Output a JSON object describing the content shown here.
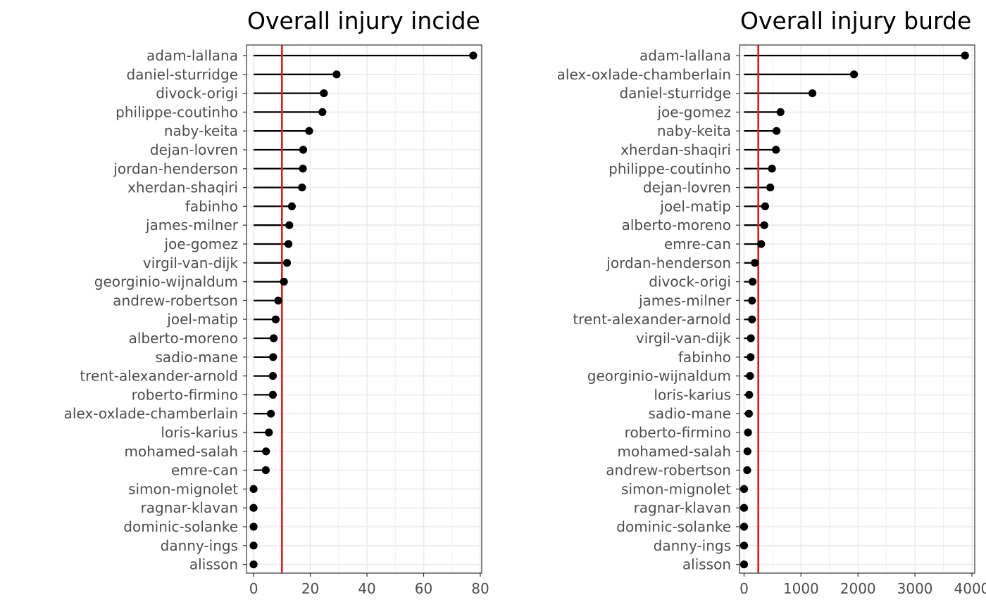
{
  "chart_data": [
    {
      "type": "lollipop",
      "title": "Overall injury incide",
      "xlim": [
        -2.5,
        80.5
      ],
      "xticks": [
        0,
        20,
        40,
        60,
        80
      ],
      "reference_line": 10,
      "grid": true,
      "categories": [
        "adam-lallana",
        "daniel-sturridge",
        "divock-origi",
        "philippe-coutinho",
        "naby-keita",
        "dejan-lovren",
        "jordan-henderson",
        "xherdan-shaqiri",
        "fabinho",
        "james-milner",
        "joe-gomez",
        "virgil-van-dijk",
        "georginio-wijnaldum",
        "andrew-robertson",
        "joel-matip",
        "alberto-moreno",
        "sadio-mane",
        "trent-alexander-arnold",
        "roberto-firmino",
        "alex-oxlade-chamberlain",
        "loris-karius",
        "mohamed-salah",
        "emre-can",
        "simon-mignolet",
        "ragnar-klavan",
        "dominic-solanke",
        "danny-ings",
        "alisson"
      ],
      "values": [
        77.5,
        29.3,
        24.8,
        24.3,
        19.6,
        17.5,
        17.4,
        17.1,
        13.5,
        12.6,
        12.3,
        11.8,
        10.7,
        8.7,
        7.8,
        7.1,
        6.9,
        6.8,
        6.8,
        6.1,
        5.4,
        4.4,
        4.3,
        0,
        0,
        0,
        0,
        0
      ]
    },
    {
      "type": "lollipop",
      "title": "Overall injury burde",
      "xlim": [
        -80,
        4050
      ],
      "xticks": [
        0,
        1000,
        2000,
        3000,
        4000
      ],
      "reference_line": 250,
      "grid": true,
      "categories": [
        "adam-lallana",
        "alex-oxlade-chamberlain",
        "daniel-sturridge",
        "joe-gomez",
        "naby-keita",
        "xherdan-shaqiri",
        "philippe-coutinho",
        "dejan-lovren",
        "joel-matip",
        "alberto-moreno",
        "emre-can",
        "jordan-henderson",
        "divock-origi",
        "james-milner",
        "trent-alexander-arnold",
        "virgil-van-dijk",
        "fabinho",
        "georginio-wijnaldum",
        "loris-karius",
        "sadio-mane",
        "roberto-firmino",
        "mohamed-salah",
        "andrew-robertson",
        "simon-mignolet",
        "ragnar-klavan",
        "dominic-solanke",
        "danny-ings",
        "alisson"
      ],
      "values": [
        3880,
        1930,
        1200,
        640,
        570,
        560,
        490,
        460,
        370,
        355,
        300,
        190,
        150,
        140,
        140,
        120,
        115,
        105,
        90,
        85,
        70,
        60,
        55,
        0,
        0,
        0,
        0,
        0
      ]
    }
  ]
}
